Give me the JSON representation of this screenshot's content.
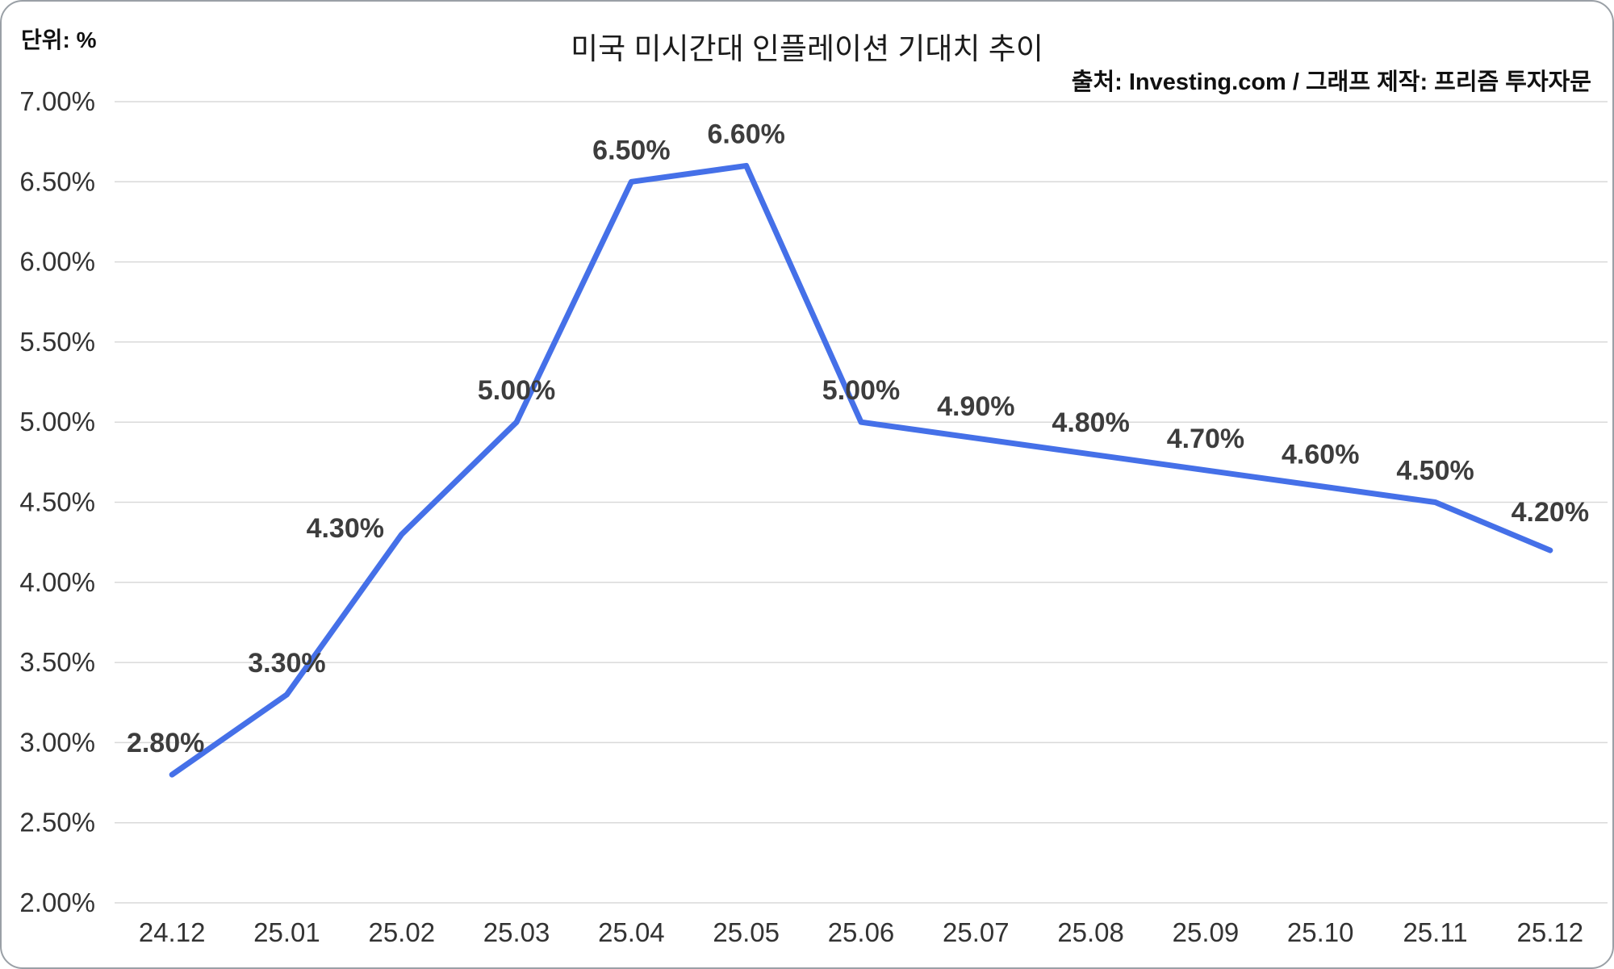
{
  "page": {
    "unit_label": "단위: %",
    "title": "미국 미시간대 인플레이션 기대치 추이",
    "source": "출처: Investing.com / 그래프 제작: 프리즘 투자자문"
  },
  "chart_data": {
    "type": "line",
    "title": "미국 미시간대 인플레이션 기대치 추이",
    "unit": "%",
    "source": "출처: Investing.com / 그래프 제작: 프리즘 투자자문",
    "categories": [
      "24.12",
      "25.01",
      "25.02",
      "25.03",
      "25.04",
      "25.05",
      "25.06",
      "25.07",
      "25.08",
      "25.09",
      "25.10",
      "25.11",
      "25.12"
    ],
    "values": [
      2.8,
      3.3,
      4.3,
      5.0,
      6.5,
      6.6,
      5.0,
      4.9,
      4.8,
      4.7,
      4.6,
      4.5,
      4.2
    ],
    "data_labels": [
      "2.80%",
      "3.30%",
      "4.30%",
      "5.00%",
      "6.50%",
      "6.60%",
      "5.00%",
      "4.90%",
      "4.80%",
      "4.70%",
      "4.60%",
      "4.50%",
      "4.20%"
    ],
    "ylim": [
      2.0,
      7.0
    ],
    "ytick_step": 0.5,
    "ytick_labels": [
      "2.00%",
      "2.50%",
      "3.00%",
      "3.50%",
      "4.00%",
      "4.50%",
      "5.00%",
      "5.50%",
      "6.00%",
      "6.50%",
      "7.00%"
    ],
    "grid": true,
    "legend": "none",
    "line_color": "#4570e8",
    "grid_color": "#d9d9d9",
    "data_label_color": "#3d3d3d",
    "axis_text_color": "#333333"
  }
}
